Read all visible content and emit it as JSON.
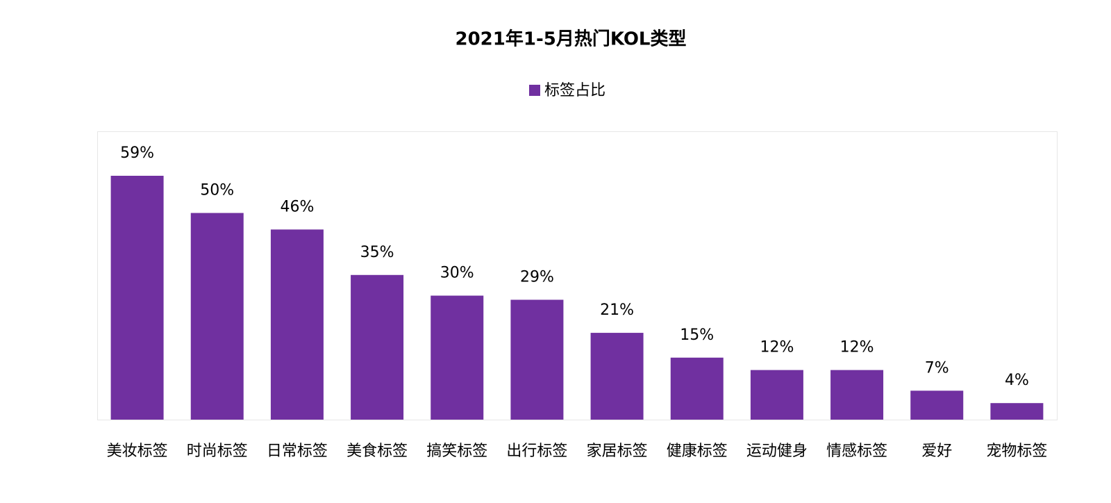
{
  "chart_data": {
    "type": "bar",
    "title": "2021年1-5月热门KOL类型",
    "categories": [
      "美妆标签",
      "时尚标签",
      "日常标签",
      "美食标签",
      "搞笑标签",
      "出行标签",
      "家居标签",
      "健康标签",
      "运动健身",
      "情感标签",
      "爱好",
      "宠物标签"
    ],
    "series": [
      {
        "name": "标签占比",
        "color": "#7030a0",
        "values": [
          59,
          50,
          46,
          35,
          30,
          29,
          21,
          15,
          12,
          12,
          7,
          4
        ],
        "value_labels": [
          "59%",
          "50%",
          "46%",
          "35%",
          "30%",
          "29%",
          "21%",
          "15%",
          "12%",
          "12%",
          "7%",
          "4%"
        ]
      }
    ],
    "legend": "top"
  }
}
